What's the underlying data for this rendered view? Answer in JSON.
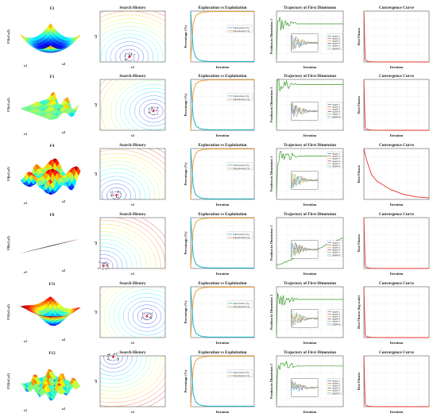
{
  "columns": {
    "surface": {
      "zlabel_template": "F{id}(x1,x2)",
      "xlabel": "x1",
      "ylabel": "x2"
    },
    "search_history": {
      "title": "Search History",
      "xlabel": "x1",
      "ylabel": "x2"
    },
    "exploration": {
      "title": "Exploration vs Exploitation",
      "xlabel": "Iteration",
      "ylabel": "Percentage (%)",
      "legend": [
        "Exploration (%)",
        "Exploitation (%)"
      ]
    },
    "trajectory": {
      "title": "Trajectory of First Dimension",
      "xlabel": "Iteration",
      "ylabel": "Position in Dimension 1",
      "legend": [
        "Agent 1",
        "Agent 2",
        "Agent 3",
        "Agent 4",
        "Agent 5",
        "Agent 6"
      ]
    },
    "convergence": {
      "title": "Convergence Curve",
      "xlabel": "Iteration",
      "ylabel": "Best Fitness"
    }
  },
  "rows": [
    {
      "function": "F2",
      "convergence_ylabel": "Best Fitness"
    },
    {
      "function": "F3",
      "convergence_ylabel": "Best Fitness"
    },
    {
      "function": "F4",
      "convergence_ylabel": "Best Fitness"
    },
    {
      "function": "F8",
      "convergence_ylabel": "Best Fitness"
    },
    {
      "function": "F11",
      "convergence_ylabel": "Best Fitness (log scale)"
    },
    {
      "function": "F12",
      "convergence_ylabel": "Best Fitness"
    }
  ],
  "colors": {
    "exploration": "#19b6c9",
    "exploitation": "#f2a23a",
    "convergence": "#e8312b",
    "best_marker": "#e0104c",
    "trajectory_main": "#3a9a2a",
    "agents": [
      "#1f77b4",
      "#d95319",
      "#edb120",
      "#7e2f8e",
      "#77ac30",
      "#4dbeee"
    ]
  },
  "chart_data": [
    {
      "type": "line",
      "title": "Exploration vs Exploitation",
      "xlabel": "Iteration",
      "ylabel": "Percentage (%)",
      "x": [
        0,
        20,
        40,
        60,
        80,
        100,
        150,
        200,
        300,
        400,
        500
      ],
      "series": [
        {
          "name": "Exploration (%)",
          "values": [
            100,
            25,
            9,
            5,
            3,
            2,
            1,
            1,
            1,
            1,
            1
          ]
        },
        {
          "name": "Exploitation (%)",
          "values": [
            0,
            75,
            91,
            95,
            97,
            98,
            99,
            99,
            99,
            99,
            99
          ]
        }
      ],
      "ylim": [
        0,
        100
      ]
    },
    {
      "type": "line",
      "title": "Convergence Curve",
      "xlabel": "Iteration",
      "ylabel": "Best Fitness",
      "x": [
        0,
        10,
        20,
        40,
        60,
        100,
        200,
        300,
        400,
        500
      ],
      "series": [
        {
          "name": "F2",
          "values": [
            100,
            6,
            2,
            1,
            0.5,
            0.2,
            0.05,
            0.02,
            0.01,
            0.01
          ]
        },
        {
          "name": "F4",
          "values": [
            100,
            88,
            78,
            62,
            48,
            36,
            20,
            10,
            5,
            3
          ]
        }
      ]
    }
  ]
}
